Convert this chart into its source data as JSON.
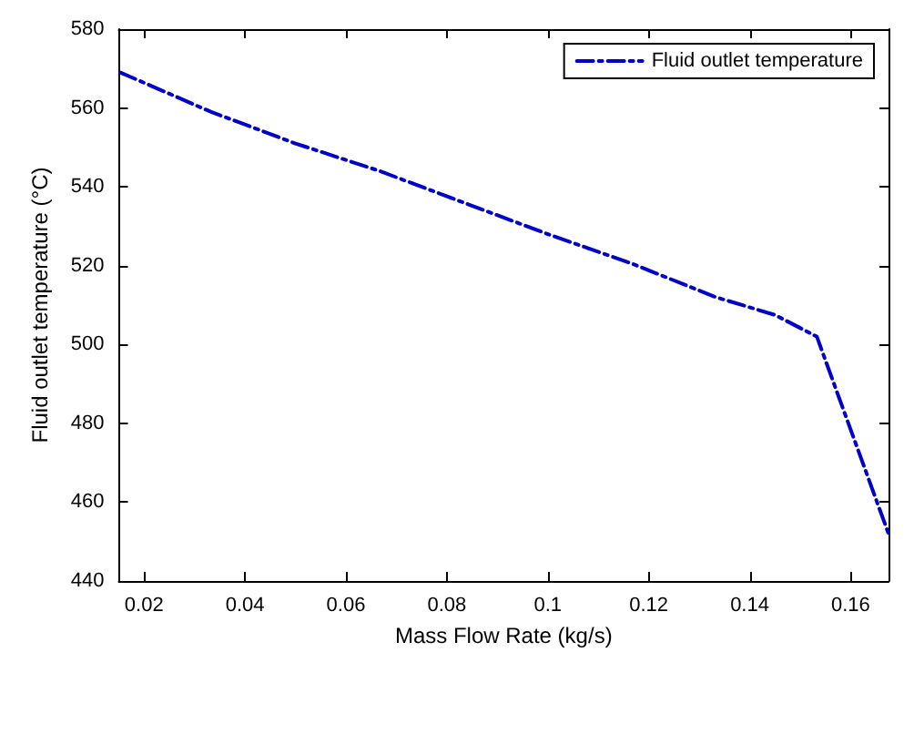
{
  "chart_data": {
    "type": "line",
    "xlabel": "Mass Flow Rate (kg/s)",
    "ylabel": "Fluid outlet temperature (°C)",
    "x": [
      0.0153,
      0.0333,
      0.05,
      0.0667,
      0.0833,
      0.1,
      0.1167,
      0.1333,
      0.145,
      0.1533,
      0.1675
    ],
    "series": [
      {
        "name": "Fluid outlet temperature",
        "color": "#0000cc",
        "values": [
          569,
          559,
          551,
          544,
          536,
          528,
          520.5,
          512,
          507.5,
          502,
          452
        ]
      }
    ],
    "xlim": [
      0.015,
      0.1675
    ],
    "xticks": [
      0.02,
      0.04,
      0.06,
      0.08,
      0.1,
      0.12,
      0.14,
      0.16
    ],
    "ylim": [
      440,
      580
    ],
    "yticks": [
      440,
      460,
      480,
      500,
      520,
      540,
      560,
      580
    ],
    "grid": false,
    "legend": "top right",
    "line_style": "dashed",
    "marker": "none"
  }
}
